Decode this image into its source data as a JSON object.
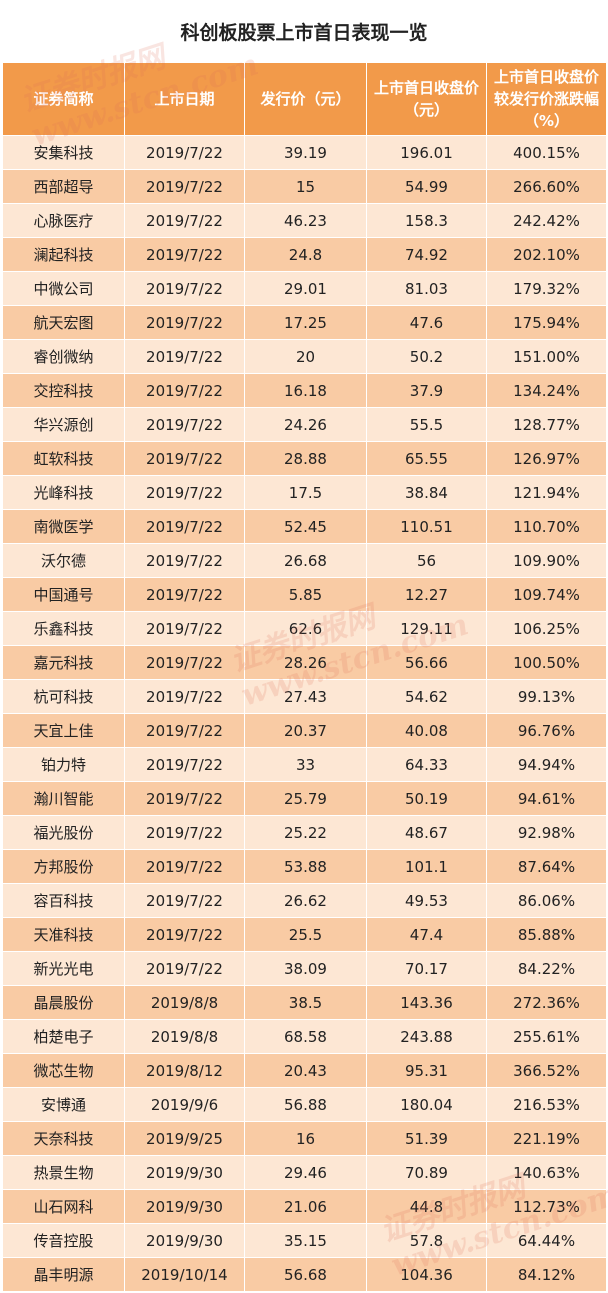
{
  "chart_data": {
    "type": "table",
    "title": "科创板股票上市首日表现一览",
    "columns": [
      "证券简称",
      "上市日期",
      "发行价（元）",
      "上市首日收盘价（元）",
      "上市首日收盘价较发行价涨跌幅（%）"
    ],
    "rows": [
      [
        "安集科技",
        "2019/7/22",
        "39.19",
        "196.01",
        "400.15%"
      ],
      [
        "西部超导",
        "2019/7/22",
        "15",
        "54.99",
        "266.60%"
      ],
      [
        "心脉医疗",
        "2019/7/22",
        "46.23",
        "158.3",
        "242.42%"
      ],
      [
        "澜起科技",
        "2019/7/22",
        "24.8",
        "74.92",
        "202.10%"
      ],
      [
        "中微公司",
        "2019/7/22",
        "29.01",
        "81.03",
        "179.32%"
      ],
      [
        "航天宏图",
        "2019/7/22",
        "17.25",
        "47.6",
        "175.94%"
      ],
      [
        "睿创微纳",
        "2019/7/22",
        "20",
        "50.2",
        "151.00%"
      ],
      [
        "交控科技",
        "2019/7/22",
        "16.18",
        "37.9",
        "134.24%"
      ],
      [
        "华兴源创",
        "2019/7/22",
        "24.26",
        "55.5",
        "128.77%"
      ],
      [
        "虹软科技",
        "2019/7/22",
        "28.88",
        "65.55",
        "126.97%"
      ],
      [
        "光峰科技",
        "2019/7/22",
        "17.5",
        "38.84",
        "121.94%"
      ],
      [
        "南微医学",
        "2019/7/22",
        "52.45",
        "110.51",
        "110.70%"
      ],
      [
        "沃尔德",
        "2019/7/22",
        "26.68",
        "56",
        "109.90%"
      ],
      [
        "中国通号",
        "2019/7/22",
        "5.85",
        "12.27",
        "109.74%"
      ],
      [
        "乐鑫科技",
        "2019/7/22",
        "62.6",
        "129.11",
        "106.25%"
      ],
      [
        "嘉元科技",
        "2019/7/22",
        "28.26",
        "56.66",
        "100.50%"
      ],
      [
        "杭可科技",
        "2019/7/22",
        "27.43",
        "54.62",
        "99.13%"
      ],
      [
        "天宜上佳",
        "2019/7/22",
        "20.37",
        "40.08",
        "96.76%"
      ],
      [
        "铂力特",
        "2019/7/22",
        "33",
        "64.33",
        "94.94%"
      ],
      [
        "瀚川智能",
        "2019/7/22",
        "25.79",
        "50.19",
        "94.61%"
      ],
      [
        "福光股份",
        "2019/7/22",
        "25.22",
        "48.67",
        "92.98%"
      ],
      [
        "方邦股份",
        "2019/7/22",
        "53.88",
        "101.1",
        "87.64%"
      ],
      [
        "容百科技",
        "2019/7/22",
        "26.62",
        "49.53",
        "86.06%"
      ],
      [
        "天准科技",
        "2019/7/22",
        "25.5",
        "47.4",
        "85.88%"
      ],
      [
        "新光光电",
        "2019/7/22",
        "38.09",
        "70.17",
        "84.22%"
      ],
      [
        "晶晨股份",
        "2019/8/8",
        "38.5",
        "143.36",
        "272.36%"
      ],
      [
        "柏楚电子",
        "2019/8/8",
        "68.58",
        "243.88",
        "255.61%"
      ],
      [
        "微芯生物",
        "2019/8/12",
        "20.43",
        "95.31",
        "366.52%"
      ],
      [
        "安博通",
        "2019/9/6",
        "56.88",
        "180.04",
        "216.53%"
      ],
      [
        "天奈科技",
        "2019/9/25",
        "16",
        "51.39",
        "221.19%"
      ],
      [
        "热景生物",
        "2019/9/30",
        "29.46",
        "70.89",
        "140.63%"
      ],
      [
        "山石网科",
        "2019/9/30",
        "21.06",
        "44.8",
        "112.73%"
      ],
      [
        "传音控股",
        "2019/9/30",
        "35.15",
        "57.8",
        "64.44%"
      ],
      [
        "晶丰明源",
        "2019/10/14",
        "56.68",
        "104.36",
        "84.12%"
      ]
    ]
  },
  "watermark": {
    "cn": "证券时报网",
    "url": "www.stcn.com"
  },
  "colors": {
    "header": "#f29a4a",
    "row_light": "#fde7d4",
    "row_dark": "#f9cba4"
  }
}
